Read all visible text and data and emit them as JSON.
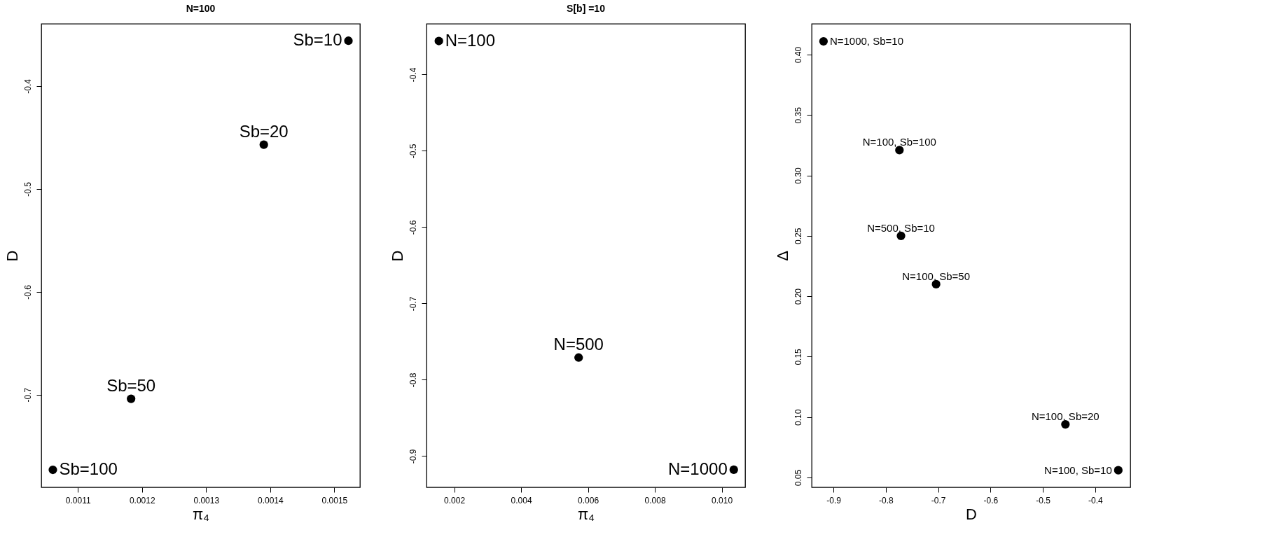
{
  "chart_data": [
    {
      "type": "scatter",
      "title": "N=100",
      "xlabel": "π₄",
      "ylabel": "D",
      "marker": "circle",
      "grid": false,
      "xlim": [
        0.001043,
        0.00154
      ],
      "ylim": [
        -0.79,
        -0.3395
      ],
      "xticks": [
        0.0011,
        0.0012,
        0.0013,
        0.0014,
        0.0015
      ],
      "yticks": [
        -0.7,
        -0.6,
        -0.5,
        -0.4
      ],
      "series": [
        {
          "color": "#000000",
          "x": [
            0.001522,
            0.00139,
            0.001183,
            0.001061
          ],
          "values": [
            -0.356,
            -0.457,
            -0.704,
            -0.773
          ]
        }
      ],
      "annotations": [
        {
          "text": "Sb=10",
          "x": 0.001522,
          "y": -0.356
        },
        {
          "text": "Sb=20",
          "x": 0.00139,
          "y": -0.457
        },
        {
          "text": "Sb=50",
          "x": 0.001183,
          "y": -0.704
        },
        {
          "text": "Sb=100",
          "x": 0.001061,
          "y": -0.773
        }
      ]
    },
    {
      "type": "scatter",
      "title": "S[b] =10",
      "xlabel": "π₄",
      "ylabel": "D",
      "marker": "circle",
      "grid": false,
      "xlim": [
        0.00117,
        0.0107
      ],
      "ylim": [
        -0.941,
        -0.3335
      ],
      "xticks": [
        0.002,
        0.004,
        0.006,
        0.008,
        {
          "value": 0.01,
          "label": "0.010"
        }
      ],
      "yticks": [
        -0.9,
        -0.8,
        -0.7,
        -0.6,
        -0.5,
        -0.4
      ],
      "series": [
        {
          "color": "#000000",
          "x": [
            0.00154,
            0.00572,
            0.01036
          ],
          "values": [
            -0.356,
            -0.771,
            -0.918
          ]
        }
      ],
      "annotations": [
        {
          "text": "N=100",
          "x": 0.00154,
          "y": -0.356
        },
        {
          "text": "N=500",
          "x": 0.00572,
          "y": -0.771
        },
        {
          "text": "N=1000",
          "x": 0.01036,
          "y": -0.918
        }
      ]
    },
    {
      "type": "scatter",
      "xlabel": "D",
      "ylabel": "Δ",
      "marker": "circle",
      "grid": false,
      "xlim": [
        -0.9416,
        -0.333
      ],
      "ylim": [
        0.0419,
        0.4255
      ],
      "xticks": [
        -0.9,
        -0.8,
        -0.7,
        -0.6,
        -0.5,
        -0.4
      ],
      "yticks": [
        {
          "value": 0.05,
          "label": "0.05"
        },
        {
          "value": 0.1,
          "label": "0.10"
        },
        {
          "value": 0.15,
          "label": "0.15"
        },
        {
          "value": 0.2,
          "label": "0.20"
        },
        {
          "value": 0.25,
          "label": "0.25"
        },
        {
          "value": 0.3,
          "label": "0.30"
        },
        {
          "value": 0.35,
          "label": "0.35"
        },
        {
          "value": 0.4,
          "label": "0.40"
        }
      ],
      "series": [
        {
          "color": "#000000",
          "x": [
            -0.919,
            -0.774,
            -0.771,
            -0.704,
            -0.457,
            -0.356
          ],
          "values": [
            0.411,
            0.321,
            0.25,
            0.21,
            0.094,
            0.056
          ]
        }
      ],
      "annotations": [
        {
          "text": "N=1000, Sb=10",
          "x": -0.919,
          "y": 0.411
        },
        {
          "text": "N=100, Sb=100",
          "x": -0.774,
          "y": 0.321
        },
        {
          "text": "N=500, Sb=10",
          "x": -0.771,
          "y": 0.25
        },
        {
          "text": "N=100, Sb=50",
          "x": -0.704,
          "y": 0.21
        },
        {
          "text": "N=100, Sb=20",
          "x": -0.457,
          "y": 0.094
        },
        {
          "text": "N=100, Sb=10",
          "x": -0.356,
          "y": 0.056
        }
      ]
    }
  ]
}
